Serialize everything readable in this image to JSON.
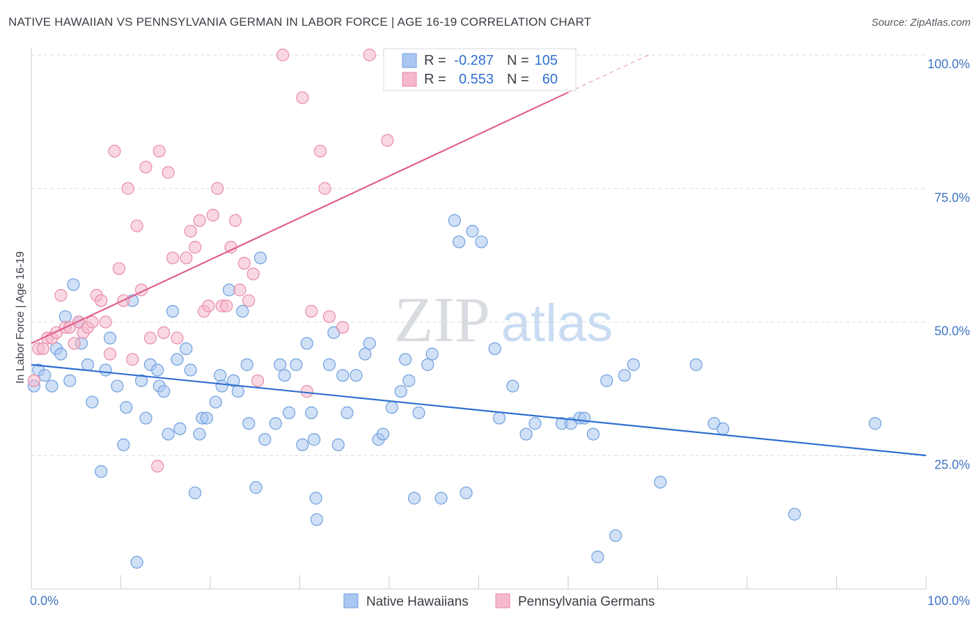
{
  "title": "NATIVE HAWAIIAN VS PENNSYLVANIA GERMAN IN LABOR FORCE | AGE 16-19 CORRELATION CHART",
  "source": "Source: ZipAtlas.com",
  "watermark": {
    "zip": "ZIP",
    "atlas": "atlas"
  },
  "colors": {
    "blue_fill": "#a9c7f0",
    "blue_stroke": "#6e9fdd",
    "blue_line": "#2f6fd1",
    "pink_fill": "#f6b8cb",
    "pink_stroke": "#e88aa8",
    "pink_line": "#e0608a",
    "grid": "#d9dce2",
    "tick_text": "#3f74c4"
  },
  "legend_top": {
    "rows": [
      {
        "r_label": "R =",
        "r_value": "-0.287",
        "n_label": "N =",
        "n_value": "105",
        "series": "blue"
      },
      {
        "r_label": "R =",
        "r_value": "0.553",
        "n_label": "N =",
        "n_value": "60",
        "series": "pink"
      }
    ]
  },
  "chart_data": {
    "type": "scatter",
    "title": "NATIVE HAWAIIAN VS PENNSYLVANIA GERMAN IN LABOR FORCE | AGE 16-19 CORRELATION CHART",
    "xlabel": "",
    "ylabel": "In Labor Force | Age 16-19",
    "xlim": [
      0,
      100
    ],
    "ylim": [
      0,
      100
    ],
    "x_tick_labels": [
      "0.0%",
      "100.0%"
    ],
    "y_tick_labels": [
      "25.0%",
      "50.0%",
      "75.0%",
      "100.0%"
    ],
    "y_ticks": [
      25,
      50,
      75,
      100
    ],
    "grid": true,
    "legend_position": "bottom",
    "series": [
      {
        "name": "Native Hawaiians",
        "color": "blue",
        "trend": {
          "x": [
            0,
            100
          ],
          "y": [
            42.0,
            25.0
          ]
        },
        "points": [
          [
            0.3,
            38
          ],
          [
            0.8,
            41
          ],
          [
            1.5,
            40
          ],
          [
            2.3,
            38
          ],
          [
            2.8,
            45
          ],
          [
            3.3,
            44
          ],
          [
            3.8,
            51
          ],
          [
            4.3,
            39
          ],
          [
            4.7,
            57
          ],
          [
            5.3,
            50
          ],
          [
            5.6,
            46
          ],
          [
            6.3,
            42
          ],
          [
            6.8,
            35
          ],
          [
            7.8,
            22
          ],
          [
            8.3,
            41
          ],
          [
            8.8,
            47
          ],
          [
            9.6,
            38
          ],
          [
            10.3,
            27
          ],
          [
            10.6,
            34
          ],
          [
            11.3,
            54
          ],
          [
            11.8,
            5
          ],
          [
            12.3,
            39
          ],
          [
            12.8,
            32
          ],
          [
            13.3,
            42
          ],
          [
            14.1,
            41
          ],
          [
            14.3,
            38
          ],
          [
            14.8,
            37
          ],
          [
            15.3,
            29
          ],
          [
            15.8,
            52
          ],
          [
            16.3,
            43
          ],
          [
            16.6,
            30
          ],
          [
            17.3,
            45
          ],
          [
            17.8,
            41
          ],
          [
            18.3,
            18
          ],
          [
            18.8,
            29
          ],
          [
            19.1,
            32
          ],
          [
            19.6,
            32
          ],
          [
            20.6,
            35
          ],
          [
            21.1,
            40
          ],
          [
            21.3,
            38
          ],
          [
            22.1,
            56
          ],
          [
            22.6,
            39
          ],
          [
            23.1,
            37
          ],
          [
            23.6,
            52
          ],
          [
            24.1,
            42
          ],
          [
            24.3,
            31
          ],
          [
            25.1,
            19
          ],
          [
            25.6,
            62
          ],
          [
            26.1,
            28
          ],
          [
            27.3,
            31
          ],
          [
            27.8,
            42
          ],
          [
            28.3,
            40
          ],
          [
            28.8,
            33
          ],
          [
            29.6,
            42
          ],
          [
            30.3,
            27
          ],
          [
            30.8,
            46
          ],
          [
            31.3,
            33
          ],
          [
            31.6,
            28
          ],
          [
            31.8,
            17
          ],
          [
            31.9,
            13
          ],
          [
            33.3,
            42
          ],
          [
            33.8,
            48
          ],
          [
            34.3,
            27
          ],
          [
            34.8,
            40
          ],
          [
            35.3,
            33
          ],
          [
            36.3,
            40
          ],
          [
            37.3,
            44
          ],
          [
            37.8,
            46
          ],
          [
            38.8,
            28
          ],
          [
            39.3,
            29
          ],
          [
            40.3,
            34
          ],
          [
            41.3,
            37
          ],
          [
            41.8,
            43
          ],
          [
            42.2,
            39
          ],
          [
            42.8,
            17
          ],
          [
            43.3,
            33
          ],
          [
            44.3,
            42
          ],
          [
            44.8,
            44
          ],
          [
            45.8,
            17
          ],
          [
            47.3,
            69
          ],
          [
            47.8,
            65
          ],
          [
            48.6,
            18
          ],
          [
            49.3,
            67
          ],
          [
            50.3,
            65
          ],
          [
            51.8,
            45
          ],
          [
            52.3,
            32
          ],
          [
            53.8,
            38
          ],
          [
            55.3,
            29
          ],
          [
            56.3,
            31
          ],
          [
            59.3,
            31
          ],
          [
            60.3,
            31
          ],
          [
            61.3,
            32
          ],
          [
            61.8,
            32
          ],
          [
            62.8,
            29
          ],
          [
            63.3,
            6
          ],
          [
            64.3,
            39
          ],
          [
            65.3,
            10
          ],
          [
            66.3,
            40
          ],
          [
            67.3,
            42
          ],
          [
            70.3,
            20
          ],
          [
            74.3,
            42
          ],
          [
            76.3,
            31
          ],
          [
            77.3,
            30
          ],
          [
            85.3,
            14
          ],
          [
            94.3,
            31
          ]
        ]
      },
      {
        "name": "Pennsylvania Germans",
        "color": "pink",
        "trend": {
          "x": [
            0,
            60
          ],
          "y": [
            46.0,
            93.0
          ]
        },
        "trend_dashed": {
          "x": [
            60,
            69
          ],
          "y": [
            93.0,
            100.0
          ]
        },
        "points": [
          [
            0.3,
            39
          ],
          [
            0.8,
            45
          ],
          [
            1.3,
            45
          ],
          [
            1.8,
            47
          ],
          [
            2.3,
            47
          ],
          [
            2.8,
            48
          ],
          [
            3.3,
            55
          ],
          [
            3.8,
            49
          ],
          [
            4.3,
            49
          ],
          [
            4.8,
            46
          ],
          [
            5.3,
            50
          ],
          [
            5.8,
            48
          ],
          [
            6.3,
            49
          ],
          [
            6.8,
            50
          ],
          [
            7.3,
            55
          ],
          [
            7.8,
            54
          ],
          [
            8.3,
            50
          ],
          [
            8.8,
            44
          ],
          [
            9.3,
            82
          ],
          [
            9.8,
            60
          ],
          [
            10.3,
            54
          ],
          [
            10.8,
            75
          ],
          [
            11.3,
            43
          ],
          [
            11.8,
            68
          ],
          [
            12.3,
            56
          ],
          [
            12.8,
            79
          ],
          [
            13.3,
            47
          ],
          [
            14.1,
            23
          ],
          [
            14.3,
            82
          ],
          [
            14.8,
            48
          ],
          [
            15.3,
            78
          ],
          [
            15.8,
            62
          ],
          [
            16.3,
            47
          ],
          [
            17.3,
            62
          ],
          [
            17.8,
            67
          ],
          [
            18.3,
            64
          ],
          [
            18.8,
            69
          ],
          [
            19.3,
            52
          ],
          [
            19.8,
            53
          ],
          [
            20.3,
            70
          ],
          [
            20.8,
            75
          ],
          [
            21.3,
            53
          ],
          [
            21.8,
            53
          ],
          [
            22.3,
            64
          ],
          [
            22.8,
            69
          ],
          [
            23.3,
            56
          ],
          [
            23.8,
            61
          ],
          [
            24.3,
            54
          ],
          [
            24.8,
            59
          ],
          [
            25.3,
            39
          ],
          [
            28.1,
            100
          ],
          [
            30.3,
            92
          ],
          [
            30.8,
            37
          ],
          [
            31.3,
            52
          ],
          [
            32.3,
            82
          ],
          [
            32.8,
            75
          ],
          [
            34.8,
            49
          ],
          [
            37.8,
            100
          ],
          [
            39.8,
            84
          ],
          [
            33.3,
            51
          ]
        ]
      }
    ]
  },
  "legend_bottom": {
    "items": [
      {
        "label": "Native Hawaiians",
        "series": "blue"
      },
      {
        "label": "Pennsylvania Germans",
        "series": "pink"
      }
    ]
  }
}
